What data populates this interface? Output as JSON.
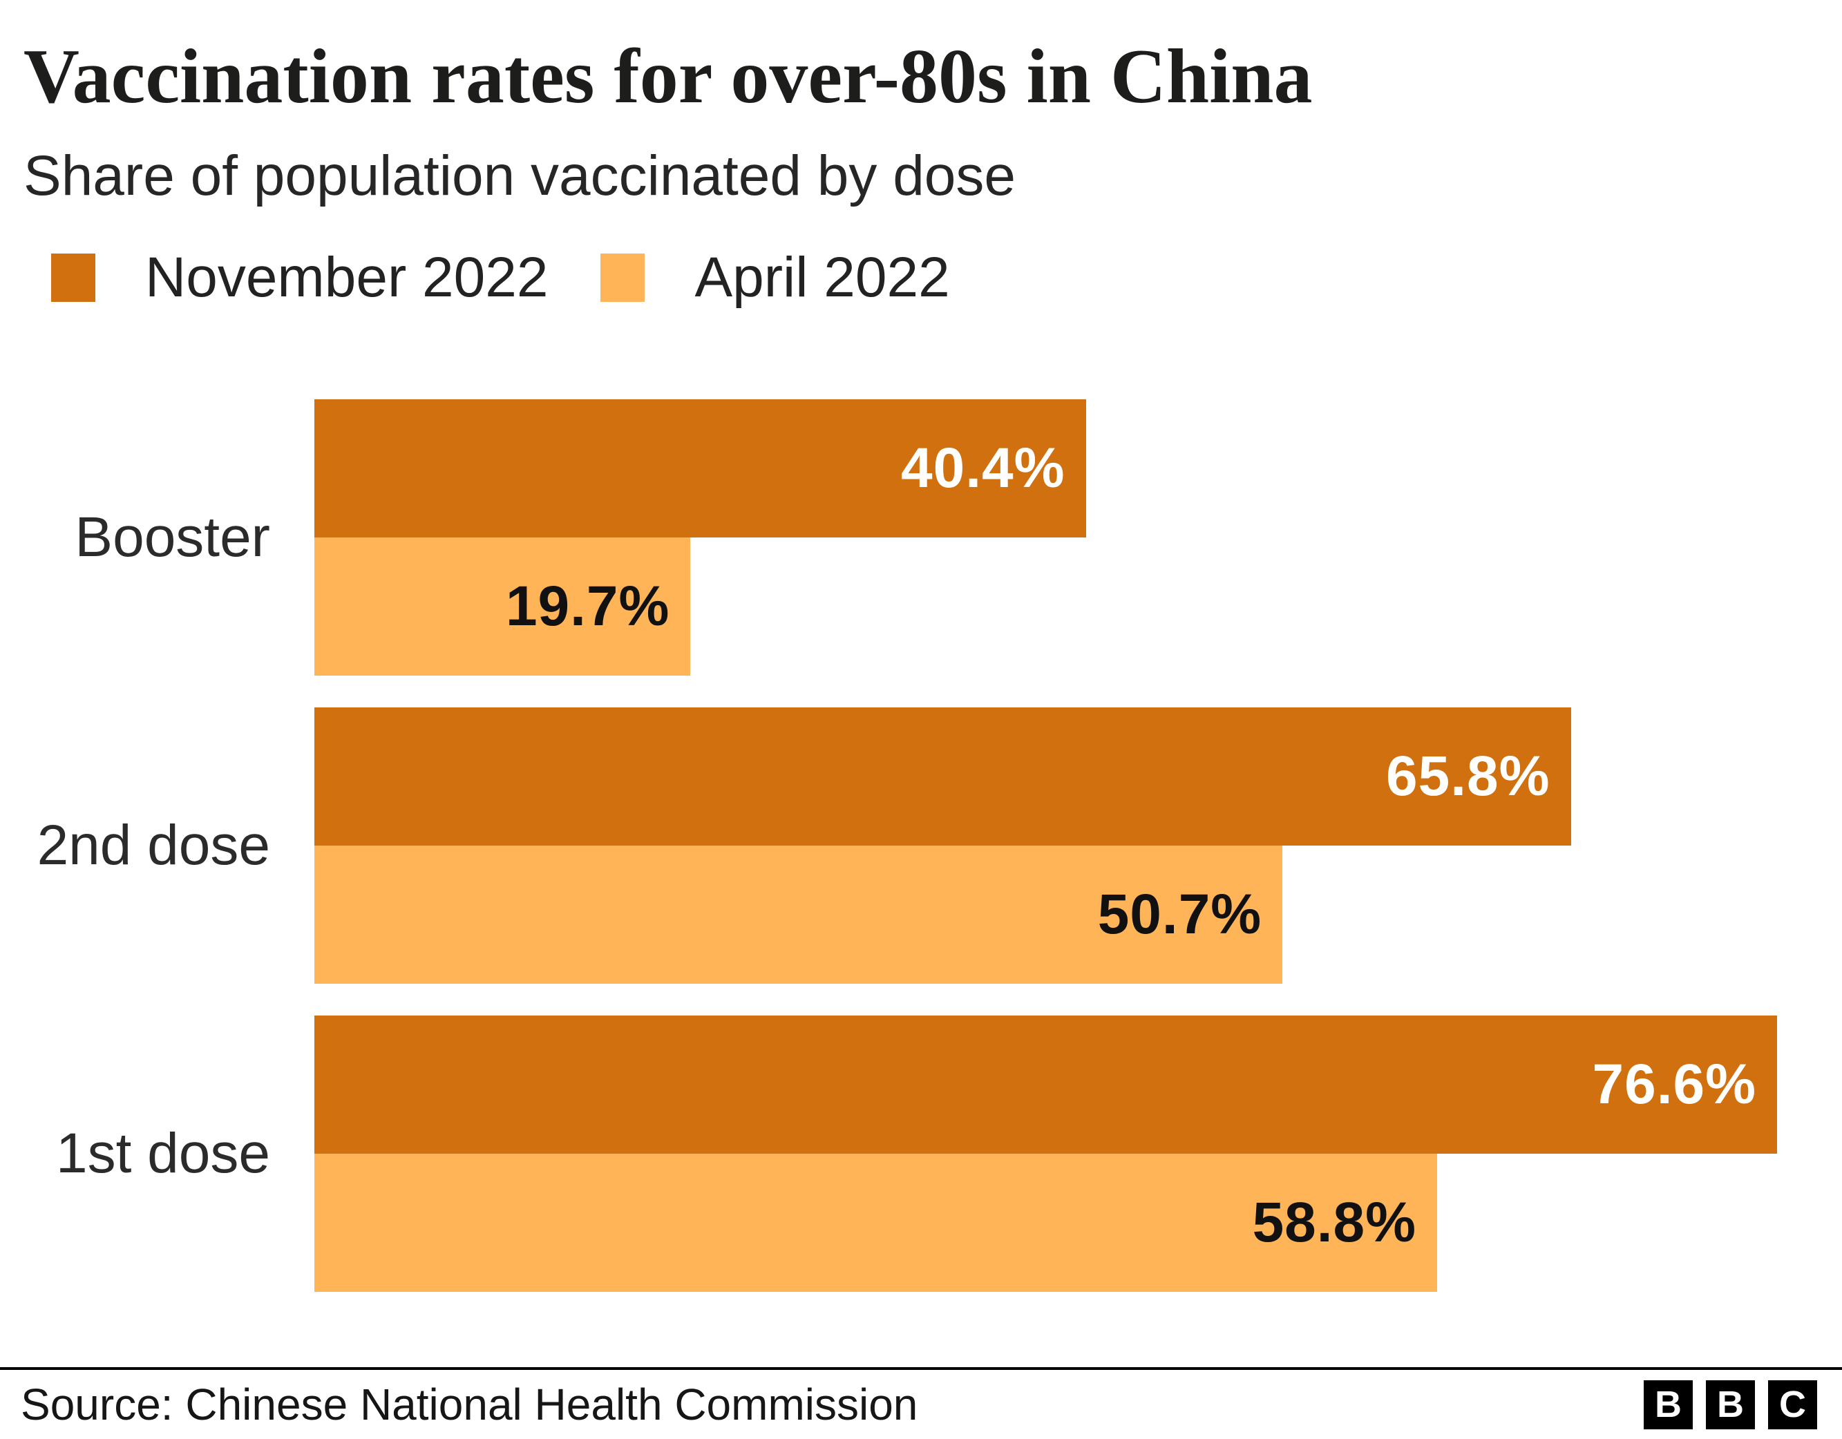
{
  "header": {
    "title": "Vaccination rates for over-80s in China",
    "subtitle": "Share of population vaccinated by dose"
  },
  "legend": [
    {
      "label": "November 2022",
      "color": "#D0700E"
    },
    {
      "label": "April 2022",
      "color": "#FFB457"
    }
  ],
  "chart_data": {
    "type": "bar",
    "orientation": "horizontal",
    "title": "Vaccination rates for over-80s in China",
    "subtitle": "Share of population vaccinated by dose",
    "categories": [
      "Booster",
      "2nd dose",
      "1st dose"
    ],
    "series": [
      {
        "name": "November 2022",
        "color": "#D0700E",
        "label_color": "#ffffff",
        "values": [
          40.4,
          65.8,
          76.6
        ],
        "value_labels": [
          "40.4%",
          "65.8%",
          "76.6%"
        ]
      },
      {
        "name": "April 2022",
        "color": "#FFB457",
        "label_color": "#111111",
        "values": [
          19.7,
          50.7,
          58.8
        ],
        "value_labels": [
          "19.7%",
          "50.7%",
          "58.8%"
        ]
      }
    ],
    "xlim": [
      0,
      80
    ],
    "grid": false,
    "legend_position": "top",
    "value_label_position": "inside-end"
  },
  "footer": {
    "source": "Source: Chinese National Health Commission",
    "logo_letters": [
      "B",
      "B",
      "C"
    ]
  }
}
